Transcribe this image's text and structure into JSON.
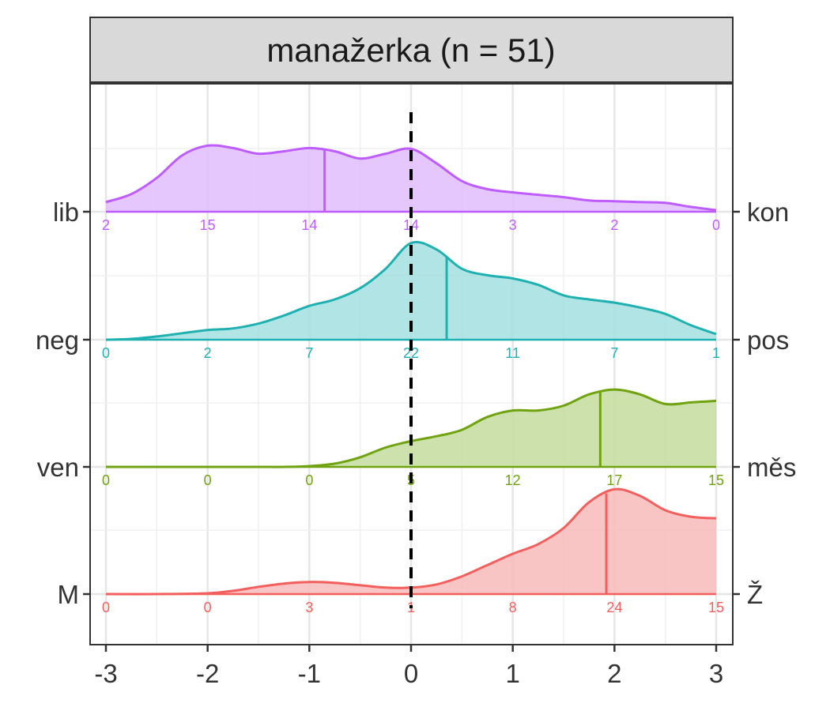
{
  "chart_data": {
    "type": "ridgeline",
    "title": "manažerka (n = 51)",
    "xlim": [
      -3,
      3
    ],
    "x_ticks": [
      "-3",
      "-2",
      "-1",
      "0",
      "1",
      "2",
      "3"
    ],
    "reference_line_x": 0,
    "grid": true,
    "series": [
      {
        "name_left": "lib",
        "name_right": "kon",
        "color": "#BF5CFF",
        "fill": "#E0BDFD",
        "mean": -0.85,
        "counts": [
          "2",
          "15",
          "14",
          "14",
          "3",
          "2",
          "0"
        ],
        "density": [
          [
            -3,
            0.12
          ],
          [
            -2.75,
            0.22
          ],
          [
            -2.5,
            0.42
          ],
          [
            -2.25,
            0.7
          ],
          [
            -2.0,
            0.82
          ],
          [
            -1.75,
            0.79
          ],
          [
            -1.5,
            0.72
          ],
          [
            -1.25,
            0.75
          ],
          [
            -1.0,
            0.79
          ],
          [
            -0.75,
            0.75
          ],
          [
            -0.5,
            0.66
          ],
          [
            -0.25,
            0.72
          ],
          [
            0.0,
            0.78
          ],
          [
            0.25,
            0.6
          ],
          [
            0.5,
            0.38
          ],
          [
            0.75,
            0.28
          ],
          [
            1.0,
            0.24
          ],
          [
            1.25,
            0.21
          ],
          [
            1.5,
            0.18
          ],
          [
            1.75,
            0.14
          ],
          [
            2.0,
            0.13
          ],
          [
            2.25,
            0.12
          ],
          [
            2.5,
            0.11
          ],
          [
            2.75,
            0.06
          ],
          [
            3.0,
            0.02
          ]
        ]
      },
      {
        "name_left": "neg",
        "name_right": "pos",
        "color": "#1FB1B1",
        "fill": "#A3DFDF",
        "mean": 0.35,
        "counts": [
          "0",
          "2",
          "7",
          "22",
          "11",
          "7",
          "1"
        ],
        "density": [
          [
            -3,
            0.0
          ],
          [
            -2.75,
            0.01
          ],
          [
            -2.5,
            0.04
          ],
          [
            -2.25,
            0.08
          ],
          [
            -2.0,
            0.12
          ],
          [
            -1.75,
            0.14
          ],
          [
            -1.5,
            0.2
          ],
          [
            -1.25,
            0.3
          ],
          [
            -1.0,
            0.42
          ],
          [
            -0.75,
            0.5
          ],
          [
            -0.5,
            0.64
          ],
          [
            -0.25,
            0.88
          ],
          [
            0.0,
            1.2
          ],
          [
            0.25,
            1.12
          ],
          [
            0.5,
            0.88
          ],
          [
            0.75,
            0.8
          ],
          [
            1.0,
            0.76
          ],
          [
            1.25,
            0.68
          ],
          [
            1.5,
            0.55
          ],
          [
            1.75,
            0.5
          ],
          [
            2.0,
            0.46
          ],
          [
            2.25,
            0.4
          ],
          [
            2.5,
            0.32
          ],
          [
            2.75,
            0.18
          ],
          [
            3.0,
            0.07
          ]
        ]
      },
      {
        "name_left": "ven",
        "name_right": "měs",
        "color": "#6FA30F",
        "fill": "#C4DC9D",
        "mean": 1.86,
        "counts": [
          "0",
          "0",
          "0",
          "5",
          "12",
          "17",
          "15"
        ],
        "density": [
          [
            -3,
            0.0
          ],
          [
            -2.5,
            0.0
          ],
          [
            -2.0,
            0.0
          ],
          [
            -1.5,
            0.0
          ],
          [
            -1.25,
            0.0
          ],
          [
            -1.0,
            0.01
          ],
          [
            -0.75,
            0.04
          ],
          [
            -0.5,
            0.12
          ],
          [
            -0.25,
            0.24
          ],
          [
            0.0,
            0.32
          ],
          [
            0.25,
            0.38
          ],
          [
            0.5,
            0.46
          ],
          [
            0.75,
            0.62
          ],
          [
            1.0,
            0.7
          ],
          [
            1.25,
            0.7
          ],
          [
            1.5,
            0.76
          ],
          [
            1.75,
            0.9
          ],
          [
            2.0,
            0.96
          ],
          [
            2.25,
            0.9
          ],
          [
            2.5,
            0.78
          ],
          [
            2.75,
            0.8
          ],
          [
            3.0,
            0.82
          ]
        ]
      },
      {
        "name_left": "M",
        "name_right": "Ž",
        "color": "#F25F5C",
        "fill": "#F8BABA",
        "mean": 1.92,
        "counts": [
          "0",
          "0",
          "3",
          "1",
          "8",
          "24",
          "15"
        ],
        "density": [
          [
            -3,
            0.0
          ],
          [
            -2.5,
            0.0
          ],
          [
            -2.0,
            0.01
          ],
          [
            -1.75,
            0.04
          ],
          [
            -1.5,
            0.09
          ],
          [
            -1.25,
            0.13
          ],
          [
            -1.0,
            0.15
          ],
          [
            -0.75,
            0.14
          ],
          [
            -0.5,
            0.11
          ],
          [
            -0.25,
            0.08
          ],
          [
            0.0,
            0.08
          ],
          [
            0.25,
            0.12
          ],
          [
            0.5,
            0.22
          ],
          [
            0.75,
            0.36
          ],
          [
            1.0,
            0.5
          ],
          [
            1.25,
            0.62
          ],
          [
            1.5,
            0.82
          ],
          [
            1.75,
            1.14
          ],
          [
            2.0,
            1.3
          ],
          [
            2.25,
            1.22
          ],
          [
            2.5,
            1.04
          ],
          [
            2.75,
            0.96
          ],
          [
            3.0,
            0.94
          ]
        ]
      }
    ]
  }
}
